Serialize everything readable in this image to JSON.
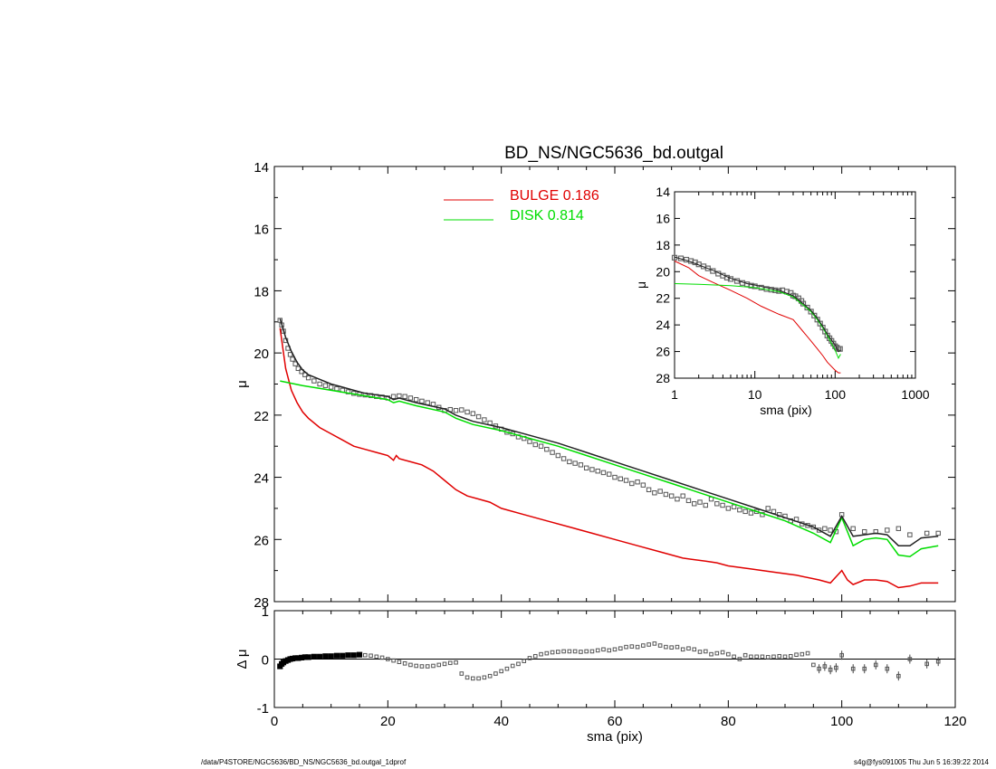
{
  "title": "BD_NS/NGC5636_bd.outgal",
  "footer": {
    "left": "/data/P4STORE/NGC5636/BD_NS/NGC5636_bd.outgal_1dprof",
    "right": "s4g@fys091005  Thu Jun  5 16:39:22 2014"
  },
  "colors": {
    "data": "#555555",
    "model": "#222222",
    "bulge": "#e00000",
    "disk": "#00dd00"
  },
  "legend": [
    {
      "label": "BULGE  0.186",
      "color": "#e00000"
    },
    {
      "label": "DISK  0.814",
      "color": "#00dd00"
    }
  ],
  "chart_data": [
    {
      "id": "main",
      "type": "line",
      "title": "BD_NS/NGC5636_bd.outgal",
      "xlabel": "",
      "ylabel": "μ",
      "xlim": [
        0,
        120
      ],
      "ylim": [
        28,
        14
      ],
      "y_inverted": true,
      "yticks": [
        14,
        16,
        18,
        20,
        22,
        24,
        26,
        28
      ],
      "xticks": [
        0,
        20,
        40,
        60,
        80,
        100,
        120
      ],
      "legend_position": "top-center",
      "series": [
        {
          "name": "BULGE  0.186",
          "color": "#e00000",
          "x": [
            1,
            2,
            3,
            4,
            5,
            6,
            8,
            10,
            12,
            14,
            16,
            18,
            20,
            21,
            21.5,
            22,
            24,
            26,
            28,
            30,
            32,
            34,
            36,
            38,
            40,
            44,
            48,
            52,
            56,
            60,
            64,
            68,
            72,
            76,
            78,
            80,
            84,
            88,
            92,
            96,
            98,
            100,
            101,
            102,
            104,
            106,
            108,
            110,
            112,
            114,
            117
          ],
          "y": [
            19.2,
            20.5,
            21.2,
            21.6,
            21.9,
            22.1,
            22.4,
            22.6,
            22.8,
            23.0,
            23.1,
            23.2,
            23.3,
            23.45,
            23.3,
            23.4,
            23.5,
            23.6,
            23.8,
            24.1,
            24.4,
            24.6,
            24.7,
            24.8,
            25.0,
            25.2,
            25.4,
            25.6,
            25.8,
            26.0,
            26.2,
            26.4,
            26.6,
            26.7,
            26.75,
            26.85,
            26.95,
            27.05,
            27.15,
            27.3,
            27.4,
            27.0,
            27.3,
            27.45,
            27.3,
            27.3,
            27.35,
            27.55,
            27.5,
            27.4,
            27.4
          ]
        },
        {
          "name": "DISK  0.814",
          "color": "#00dd00",
          "x": [
            1,
            5,
            10,
            15,
            20,
            21,
            22,
            25,
            30,
            32,
            35,
            40,
            45,
            50,
            55,
            60,
            65,
            70,
            75,
            80,
            85,
            90,
            95,
            98,
            100,
            102,
            104,
            106,
            108,
            110,
            112,
            114,
            117
          ],
          "y": [
            20.9,
            21.05,
            21.2,
            21.35,
            21.5,
            21.6,
            21.55,
            21.7,
            21.9,
            22.1,
            22.3,
            22.5,
            22.75,
            23.0,
            23.3,
            23.6,
            23.9,
            24.2,
            24.5,
            24.8,
            25.1,
            25.4,
            25.8,
            26.1,
            25.3,
            26.2,
            26.0,
            25.95,
            26.0,
            26.5,
            26.55,
            26.3,
            26.2
          ]
        },
        {
          "name": "",
          "color": "#222222",
          "x": [
            1,
            2,
            3,
            4,
            5,
            6,
            8,
            10,
            12,
            14,
            16,
            18,
            20,
            21,
            22,
            25,
            30,
            32,
            35,
            40,
            45,
            50,
            55,
            60,
            65,
            70,
            75,
            80,
            85,
            90,
            95,
            98,
            100,
            102,
            104,
            106,
            108,
            110,
            112,
            114,
            117
          ],
          "y": [
            18.9,
            19.5,
            19.95,
            20.3,
            20.55,
            20.7,
            20.85,
            21.0,
            21.1,
            21.2,
            21.3,
            21.35,
            21.4,
            21.5,
            21.45,
            21.6,
            21.8,
            22.0,
            22.2,
            22.4,
            22.65,
            22.9,
            23.2,
            23.5,
            23.8,
            24.1,
            24.4,
            24.7,
            25.0,
            25.3,
            25.6,
            25.9,
            25.25,
            25.9,
            25.85,
            25.8,
            25.85,
            26.2,
            26.2,
            25.95,
            25.9
          ]
        }
      ],
      "points": {
        "name": "",
        "color": "#555555",
        "x": [
          1,
          1.3,
          1.6,
          2,
          2.4,
          2.8,
          3.2,
          3.7,
          4.2,
          4.8,
          5.4,
          6,
          7,
          8,
          9,
          10,
          11,
          12,
          13,
          14,
          15,
          16,
          17,
          18,
          19,
          20,
          21,
          22,
          23,
          24,
          25,
          26,
          27,
          28,
          29,
          30,
          31,
          32,
          33,
          34,
          35,
          36,
          37,
          38,
          39,
          40,
          41,
          42,
          43,
          44,
          45,
          46,
          47,
          48,
          49,
          50,
          51,
          52,
          53,
          54,
          55,
          56,
          57,
          58,
          59,
          60,
          61,
          62,
          63,
          64,
          65,
          66,
          67,
          68,
          69,
          70,
          71,
          72,
          73,
          74,
          75,
          76,
          77,
          78,
          79,
          80,
          81,
          82,
          83,
          84,
          85,
          86,
          87,
          88,
          89,
          90,
          91,
          92,
          93,
          94,
          95,
          96,
          97,
          98,
          99,
          100,
          102,
          104,
          106,
          108,
          110,
          112,
          115,
          117
        ],
        "y": [
          18.95,
          19.1,
          19.3,
          19.6,
          19.85,
          20.05,
          20.2,
          20.35,
          20.5,
          20.6,
          20.7,
          20.8,
          20.9,
          21.0,
          21.05,
          21.1,
          21.15,
          21.2,
          21.25,
          21.3,
          21.33,
          21.35,
          21.37,
          21.4,
          21.42,
          21.45,
          21.4,
          21.38,
          21.4,
          21.45,
          21.5,
          21.55,
          21.6,
          21.65,
          21.75,
          21.85,
          21.82,
          21.85,
          21.83,
          21.9,
          21.95,
          22.05,
          22.15,
          22.25,
          22.35,
          22.45,
          22.55,
          22.6,
          22.7,
          22.75,
          22.85,
          22.95,
          23.0,
          23.1,
          23.2,
          23.3,
          23.4,
          23.5,
          23.55,
          23.6,
          23.7,
          23.75,
          23.8,
          23.85,
          23.9,
          24.0,
          24.05,
          24.1,
          24.2,
          24.15,
          24.25,
          24.4,
          24.5,
          24.45,
          24.55,
          24.6,
          24.7,
          24.6,
          24.75,
          24.85,
          24.8,
          24.9,
          24.7,
          24.85,
          24.9,
          25.0,
          24.95,
          25.05,
          25.1,
          25.15,
          25.1,
          25.2,
          25.0,
          25.1,
          25.2,
          25.25,
          25.4,
          25.35,
          25.5,
          25.55,
          25.6,
          25.7,
          25.65,
          25.7,
          25.75,
          25.2,
          25.65,
          25.75,
          25.75,
          25.7,
          25.65,
          25.85,
          25.8,
          25.8
        ]
      }
    },
    {
      "id": "residual",
      "type": "scatter",
      "xlabel": "sma (pix)",
      "ylabel": "Δ μ",
      "xlim": [
        0,
        120
      ],
      "ylim": [
        -1,
        1
      ],
      "yticks": [
        -1,
        0,
        1
      ],
      "xticks": [
        0,
        20,
        40,
        60,
        80,
        100,
        120
      ],
      "points": {
        "name": "",
        "x": [
          1,
          1.3,
          1.6,
          2,
          2.4,
          2.8,
          3.2,
          3.7,
          4.2,
          4.8,
          5.4,
          6,
          7,
          8,
          9,
          10,
          11,
          12,
          13,
          14,
          15,
          16,
          17,
          18,
          19,
          20,
          21,
          22,
          23,
          24,
          25,
          26,
          27,
          28,
          29,
          30,
          31,
          32,
          33,
          34,
          35,
          36,
          37,
          38,
          39,
          40,
          41,
          42,
          43,
          44,
          45,
          46,
          47,
          48,
          49,
          50,
          51,
          52,
          53,
          54,
          55,
          56,
          57,
          58,
          59,
          60,
          61,
          62,
          63,
          64,
          65,
          66,
          67,
          68,
          69,
          70,
          71,
          72,
          73,
          74,
          75,
          76,
          77,
          78,
          79,
          80,
          81,
          82,
          83,
          84,
          85,
          86,
          87,
          88,
          89,
          90,
          91,
          92,
          93,
          94,
          95,
          96,
          97,
          98,
          99,
          100,
          102,
          104,
          106,
          108,
          110,
          112,
          115,
          117
        ],
        "y": [
          -0.15,
          -0.1,
          -0.07,
          -0.04,
          -0.02,
          0.0,
          0.01,
          0.02,
          0.02,
          0.03,
          0.04,
          0.04,
          0.05,
          0.05,
          0.06,
          0.06,
          0.07,
          0.07,
          0.08,
          0.08,
          0.09,
          0.08,
          0.07,
          0.05,
          0.03,
          0.0,
          -0.03,
          -0.06,
          -0.09,
          -0.12,
          -0.14,
          -0.15,
          -0.15,
          -0.14,
          -0.12,
          -0.1,
          -0.08,
          -0.07,
          -0.3,
          -0.38,
          -0.4,
          -0.4,
          -0.38,
          -0.35,
          -0.3,
          -0.25,
          -0.2,
          -0.14,
          -0.1,
          -0.04,
          0.02,
          0.06,
          0.1,
          0.12,
          0.14,
          0.15,
          0.16,
          0.16,
          0.16,
          0.15,
          0.16,
          0.16,
          0.18,
          0.2,
          0.18,
          0.2,
          0.22,
          0.25,
          0.26,
          0.25,
          0.28,
          0.3,
          0.32,
          0.28,
          0.25,
          0.24,
          0.25,
          0.2,
          0.22,
          0.2,
          0.15,
          0.16,
          0.1,
          0.12,
          0.14,
          0.1,
          0.05,
          0.0,
          0.08,
          0.05,
          0.05,
          0.05,
          0.04,
          0.05,
          0.06,
          0.05,
          0.06,
          0.09,
          0.1,
          0.12,
          -0.12,
          -0.2,
          -0.15,
          -0.22,
          -0.18,
          0.08,
          -0.2,
          -0.2,
          -0.12,
          -0.2,
          -0.35,
          0.0,
          -0.1,
          -0.05
        ]
      }
    },
    {
      "id": "inset",
      "type": "line",
      "xlabel": "sma (pix)",
      "ylabel": "μ",
      "xscale": "log",
      "xlim": [
        1,
        1000
      ],
      "ylim": [
        28,
        14
      ],
      "y_inverted": true,
      "yticks": [
        14,
        16,
        18,
        20,
        22,
        24,
        26,
        28
      ],
      "xticks": [
        1,
        10,
        100,
        1000
      ],
      "series": [
        {
          "name": "BULGE  0.186",
          "color": "#e00000",
          "x": [
            1,
            1.5,
            2,
            3,
            5,
            8,
            12,
            20,
            30,
            40,
            50,
            60,
            70,
            80,
            100,
            110,
            117
          ],
          "y": [
            19.2,
            19.7,
            20.3,
            20.8,
            21.4,
            22.0,
            22.6,
            23.2,
            23.6,
            24.5,
            25.2,
            25.8,
            26.3,
            26.8,
            27.4,
            27.6,
            27.6
          ]
        },
        {
          "name": "DISK  0.814",
          "color": "#00dd00",
          "x": [
            1,
            2,
            5,
            10,
            20,
            30,
            40,
            50,
            60,
            70,
            80,
            100,
            110,
            117
          ],
          "y": [
            20.9,
            20.95,
            21.05,
            21.2,
            21.5,
            21.9,
            22.5,
            23.0,
            23.6,
            24.2,
            24.8,
            25.9,
            26.5,
            26.2
          ]
        },
        {
          "name": "",
          "color": "#222222",
          "x": [
            1,
            1.5,
            2,
            3,
            5,
            8,
            12,
            20,
            30,
            40,
            50,
            60,
            70,
            80,
            100,
            110,
            117
          ],
          "y": [
            18.9,
            19.2,
            19.5,
            19.9,
            20.5,
            20.9,
            21.1,
            21.4,
            21.8,
            22.4,
            22.9,
            23.5,
            24.1,
            24.7,
            25.5,
            26.0,
            25.9
          ]
        }
      ],
      "points": {
        "name": "",
        "x": [
          1,
          1.2,
          1.4,
          1.6,
          1.8,
          2,
          2.3,
          2.6,
          3,
          3.5,
          4,
          4.5,
          5,
          6,
          7,
          8,
          9,
          10,
          12,
          14,
          16,
          18,
          20,
          22,
          25,
          28,
          30,
          32,
          35,
          38,
          40,
          45,
          50,
          55,
          60,
          65,
          70,
          75,
          80,
          85,
          90,
          95,
          100,
          105,
          110,
          115
        ],
        "y": [
          18.95,
          19.0,
          19.1,
          19.2,
          19.3,
          19.45,
          19.6,
          19.75,
          19.95,
          20.15,
          20.3,
          20.45,
          20.55,
          20.7,
          20.85,
          20.95,
          21.05,
          21.1,
          21.2,
          21.3,
          21.35,
          21.4,
          21.45,
          21.4,
          21.5,
          21.6,
          21.8,
          21.85,
          22.0,
          22.2,
          22.4,
          22.7,
          23.0,
          23.3,
          23.6,
          23.9,
          24.2,
          24.5,
          24.8,
          25.0,
          25.2,
          25.4,
          25.6,
          25.7,
          25.8,
          25.8
        ]
      }
    }
  ]
}
